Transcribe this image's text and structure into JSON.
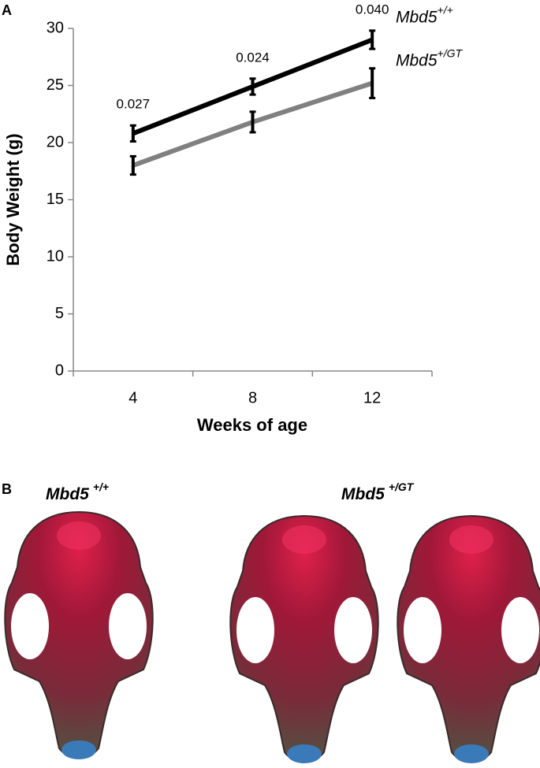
{
  "chart_data": {
    "type": "line",
    "panel_label": "A",
    "xlabel": "Weeks of age",
    "ylabel": "Body Weight (g)",
    "categories": [
      "4",
      "8",
      "12"
    ],
    "series": [
      {
        "name": "Mbd5",
        "name_sup": "+/+",
        "color": "#000000",
        "values": [
          20.8,
          24.9,
          29.0
        ],
        "errors": [
          0.7,
          0.7,
          0.8
        ]
      },
      {
        "name": "Mbd5",
        "name_sup": "+/GT",
        "color": "#808080",
        "values": [
          18.0,
          21.8,
          25.2
        ],
        "errors": [
          0.8,
          0.9,
          1.3
        ]
      }
    ],
    "annotations": [
      "0.027",
      "0.024",
      "0.040"
    ],
    "ylim": [
      0,
      30
    ],
    "yticks": [
      0,
      5,
      10,
      15,
      20,
      25,
      30
    ],
    "grid": false
  },
  "panel_b": {
    "label": "B",
    "groups": [
      {
        "name": "Mbd5",
        "sup": "+/+"
      },
      {
        "name": "Mbd5",
        "sup": "+/GT"
      }
    ]
  }
}
